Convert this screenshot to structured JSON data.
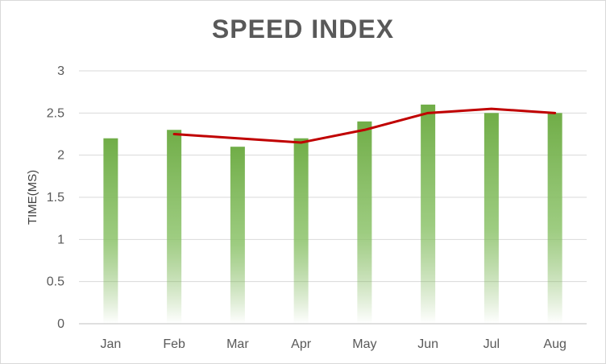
{
  "chart_data": {
    "type": "bar",
    "title": "SPEED INDEX",
    "xlabel": "",
    "ylabel": "TIME(MS)",
    "ylim": [
      0,
      3
    ],
    "yticks": [
      "0",
      "0.5",
      "1",
      "1.5",
      "2",
      "2.5",
      "3"
    ],
    "grid": true,
    "categories": [
      "Jan",
      "Feb",
      "Mar",
      "Apr",
      "May",
      "Jun",
      "Jul",
      "Aug"
    ],
    "series": [
      {
        "type": "bar",
        "values": [
          2.2,
          2.3,
          2.1,
          2.2,
          2.4,
          2.6,
          2.5,
          2.5
        ]
      },
      {
        "type": "line",
        "values": [
          null,
          2.25,
          2.2,
          2.15,
          2.3,
          2.5,
          2.55,
          2.5
        ]
      }
    ],
    "colors": {
      "bar": "#70ad47",
      "line": "#c00000",
      "grid": "#d9d9d9",
      "text": "#595959"
    }
  }
}
